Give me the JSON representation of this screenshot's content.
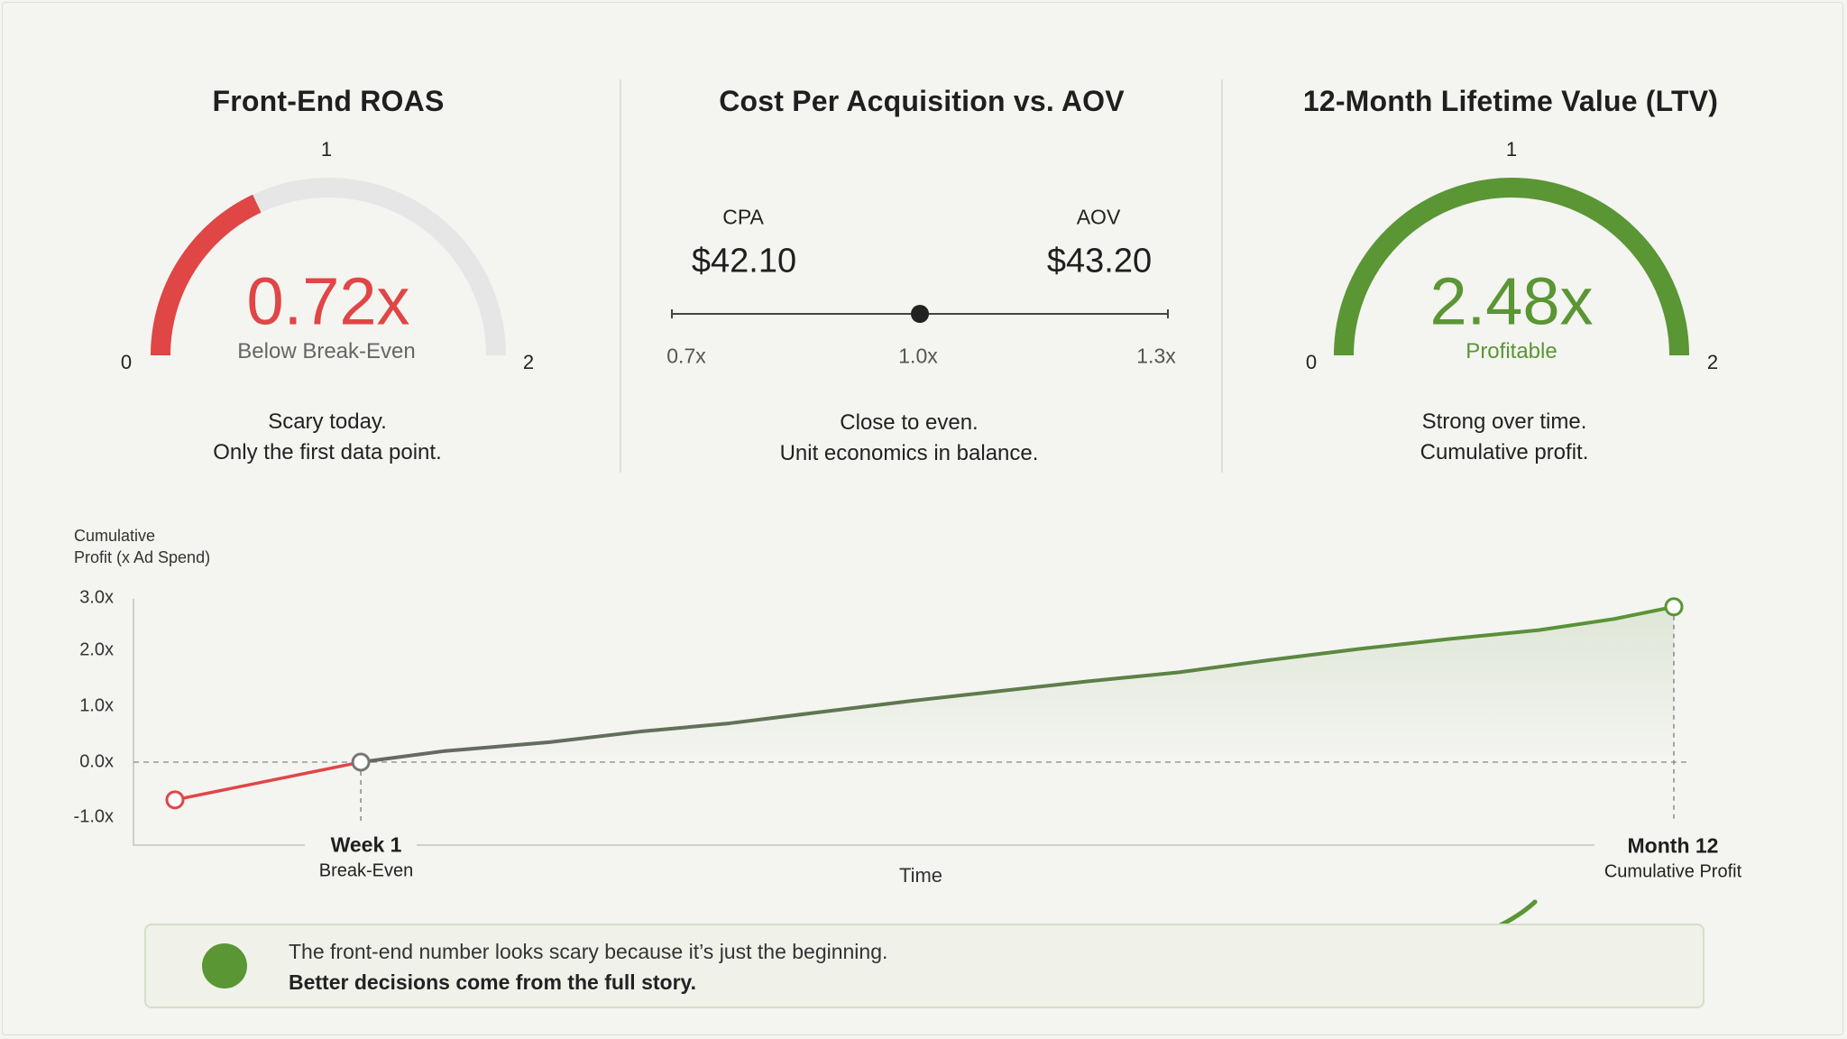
{
  "colors": {
    "red": "#e04646",
    "green": "#5a9634",
    "gray_track": "#e6e6e6",
    "dark": "#1f1f1f"
  },
  "gauges": [
    {
      "title": "Front-End ROAS",
      "min_label": "0",
      "mid_label": "1",
      "max_label": "2",
      "value": 0.72,
      "value_label": "0.72x",
      "status": "Below Break-Even",
      "color": "#e04646",
      "caption": [
        "Scary today.",
        "Only the first data point."
      ]
    },
    {
      "title": "12-Month Lifetime Value (LTV)",
      "min_label": "0",
      "mid_label": "1",
      "max_label": "2",
      "value": 2.48,
      "value_label": "2.48x",
      "status": "Profitable",
      "color": "#5a9634",
      "caption": [
        "Strong over time.",
        "Cumulative profit."
      ]
    }
  ],
  "cpa_aov": {
    "title": "Cost Per Acquisition vs. AOV",
    "cpa_label": "CPA",
    "cpa_value": "$42.10",
    "aov_label": "AOV",
    "aov_value": "$43.20",
    "scale_labels": [
      "0.7x",
      "1.0x",
      "1.3x"
    ],
    "ratio": 1.0,
    "caption": [
      "Close to even.",
      "Unit economics in balance."
    ]
  },
  "chart_data": {
    "type": "line",
    "ylabel": [
      "Cumulative",
      "Profit (x Ad Spend)"
    ],
    "xlabel": "Time",
    "y_ticks": [
      "3.0x",
      "2.0x",
      "1.0x",
      "0.0x",
      "-1.0x"
    ],
    "ylim": [
      -1.0,
      3.0
    ],
    "grid": false,
    "reference_line": 0.0,
    "series": [
      {
        "segment": "before-break-even",
        "color": "#e04646",
        "points": [
          [
            0,
            -0.68
          ],
          [
            0.124,
            0.0
          ]
        ]
      },
      {
        "segment": "after-break-even",
        "colors": [
          "#666666",
          "#5a9634"
        ],
        "points": [
          [
            0.124,
            0.0
          ],
          [
            0.18,
            0.2
          ],
          [
            0.25,
            0.36
          ],
          [
            0.31,
            0.55
          ],
          [
            0.37,
            0.7
          ],
          [
            0.43,
            0.9
          ],
          [
            0.49,
            1.1
          ],
          [
            0.55,
            1.28
          ],
          [
            0.61,
            1.46
          ],
          [
            0.67,
            1.62
          ],
          [
            0.73,
            1.84
          ],
          [
            0.79,
            2.04
          ],
          [
            0.85,
            2.22
          ],
          [
            0.91,
            2.38
          ],
          [
            0.96,
            2.58
          ],
          [
            1.0,
            2.8
          ]
        ]
      }
    ],
    "markers": [
      {
        "title": "Week 1",
        "subtitle": "Break-Even"
      },
      {
        "title": "Month 12",
        "subtitle": "Cumulative Profit"
      }
    ]
  },
  "banner": {
    "line1": "The front-end number looks scary because it’s just the beginning.",
    "line2": "Better decisions come from the full story."
  }
}
